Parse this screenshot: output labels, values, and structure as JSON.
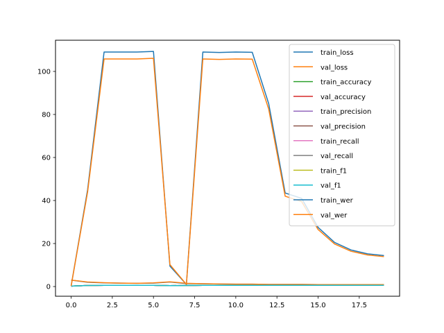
{
  "chart_data": {
    "type": "line",
    "title": "",
    "xlabel": "",
    "ylabel": "",
    "xlim": [
      -0.95,
      19.95
    ],
    "ylim": [
      -4.5,
      114.5
    ],
    "xticks": [
      0,
      2.5,
      5,
      7.5,
      10,
      12.5,
      15,
      17.5
    ],
    "xtick_labels": [
      "0.0",
      "2.5",
      "5.0",
      "7.5",
      "10.0",
      "12.5",
      "15.0",
      "17.5"
    ],
    "yticks": [
      0,
      20,
      40,
      60,
      80,
      100
    ],
    "ytick_labels": [
      "0",
      "20",
      "40",
      "60",
      "80",
      "100"
    ],
    "grid": false,
    "legend_position": "upper-right",
    "x": [
      0,
      1,
      2,
      3,
      4,
      5,
      6,
      7,
      8,
      9,
      10,
      11,
      12,
      13,
      14,
      15,
      16,
      17,
      18,
      19
    ],
    "series": [
      {
        "name": "train_loss",
        "color": "#1f77b4",
        "values": [
          3.0,
          2.0,
          1.7,
          1.6,
          1.5,
          1.6,
          2.1,
          1.4,
          1.3,
          1.2,
          1.1,
          1.1,
          1.0,
          1.0,
          1.0,
          0.9,
          0.9,
          0.9,
          0.9,
          0.9
        ]
      },
      {
        "name": "val_loss",
        "color": "#ff7f0e",
        "values": [
          3.0,
          2.1,
          1.8,
          1.6,
          1.5,
          1.7,
          2.2,
          1.5,
          1.3,
          1.2,
          1.1,
          1.1,
          1.0,
          1.0,
          1.0,
          0.9,
          0.9,
          0.9,
          0.9,
          0.9
        ]
      },
      {
        "name": "train_accuracy",
        "color": "#2ca02c",
        "values": [
          0.2,
          0.5,
          0.6,
          0.6,
          0.6,
          0.6,
          0.4,
          0.5,
          0.6,
          0.6,
          0.6,
          0.6,
          0.6,
          0.6,
          0.6,
          0.6,
          0.6,
          0.6,
          0.6,
          0.6
        ]
      },
      {
        "name": "val_accuracy",
        "color": "#d62728",
        "values": [
          0.2,
          0.5,
          0.6,
          0.6,
          0.6,
          0.6,
          0.4,
          0.5,
          0.6,
          0.6,
          0.6,
          0.6,
          0.6,
          0.6,
          0.6,
          0.6,
          0.6,
          0.6,
          0.6,
          0.6
        ]
      },
      {
        "name": "train_precision",
        "color": "#9467bd",
        "values": [
          0.2,
          0.5,
          0.6,
          0.6,
          0.6,
          0.6,
          0.4,
          0.5,
          0.6,
          0.6,
          0.6,
          0.6,
          0.6,
          0.6,
          0.6,
          0.6,
          0.6,
          0.6,
          0.6,
          0.6
        ]
      },
      {
        "name": "val_precision",
        "color": "#8c564b",
        "values": [
          0.2,
          0.5,
          0.6,
          0.6,
          0.6,
          0.6,
          0.4,
          0.5,
          0.6,
          0.6,
          0.6,
          0.6,
          0.6,
          0.6,
          0.6,
          0.6,
          0.6,
          0.6,
          0.6,
          0.6
        ]
      },
      {
        "name": "train_recall",
        "color": "#e377c2",
        "values": [
          0.2,
          0.5,
          0.6,
          0.6,
          0.6,
          0.6,
          0.4,
          0.5,
          0.6,
          0.6,
          0.6,
          0.6,
          0.6,
          0.6,
          0.6,
          0.6,
          0.6,
          0.6,
          0.6,
          0.6
        ]
      },
      {
        "name": "val_recall",
        "color": "#7f7f7f",
        "values": [
          0.2,
          0.5,
          0.6,
          0.6,
          0.6,
          0.6,
          0.4,
          0.5,
          0.6,
          0.6,
          0.6,
          0.6,
          0.6,
          0.6,
          0.6,
          0.6,
          0.6,
          0.6,
          0.6,
          0.6
        ]
      },
      {
        "name": "train_f1",
        "color": "#bcbd22",
        "values": [
          0.2,
          0.5,
          0.6,
          0.6,
          0.6,
          0.6,
          0.4,
          0.5,
          0.6,
          0.6,
          0.6,
          0.6,
          0.6,
          0.6,
          0.6,
          0.6,
          0.6,
          0.6,
          0.6,
          0.6
        ]
      },
      {
        "name": "val_f1",
        "color": "#17becf",
        "values": [
          0.2,
          0.5,
          0.6,
          0.6,
          0.6,
          0.6,
          0.4,
          0.5,
          0.6,
          0.6,
          0.6,
          0.6,
          0.6,
          0.6,
          0.6,
          0.6,
          0.6,
          0.6,
          0.6,
          0.6
        ]
      },
      {
        "name": "train_wer",
        "color": "#1f77b4",
        "values": [
          0.3,
          45,
          109.0,
          109.0,
          109.0,
          109.3,
          9.5,
          1.0,
          109.0,
          108.8,
          109.0,
          108.9,
          85,
          43.5,
          41,
          27.5,
          20.5,
          17,
          15.2,
          14.4
        ]
      },
      {
        "name": "val_wer",
        "color": "#ff7f0e",
        "values": [
          0.3,
          44,
          105.8,
          105.8,
          105.8,
          106.1,
          10.2,
          1.0,
          105.8,
          105.6,
          105.8,
          105.7,
          82.5,
          42,
          39.5,
          26.5,
          19.8,
          16.4,
          14.7,
          13.9
        ]
      }
    ]
  }
}
